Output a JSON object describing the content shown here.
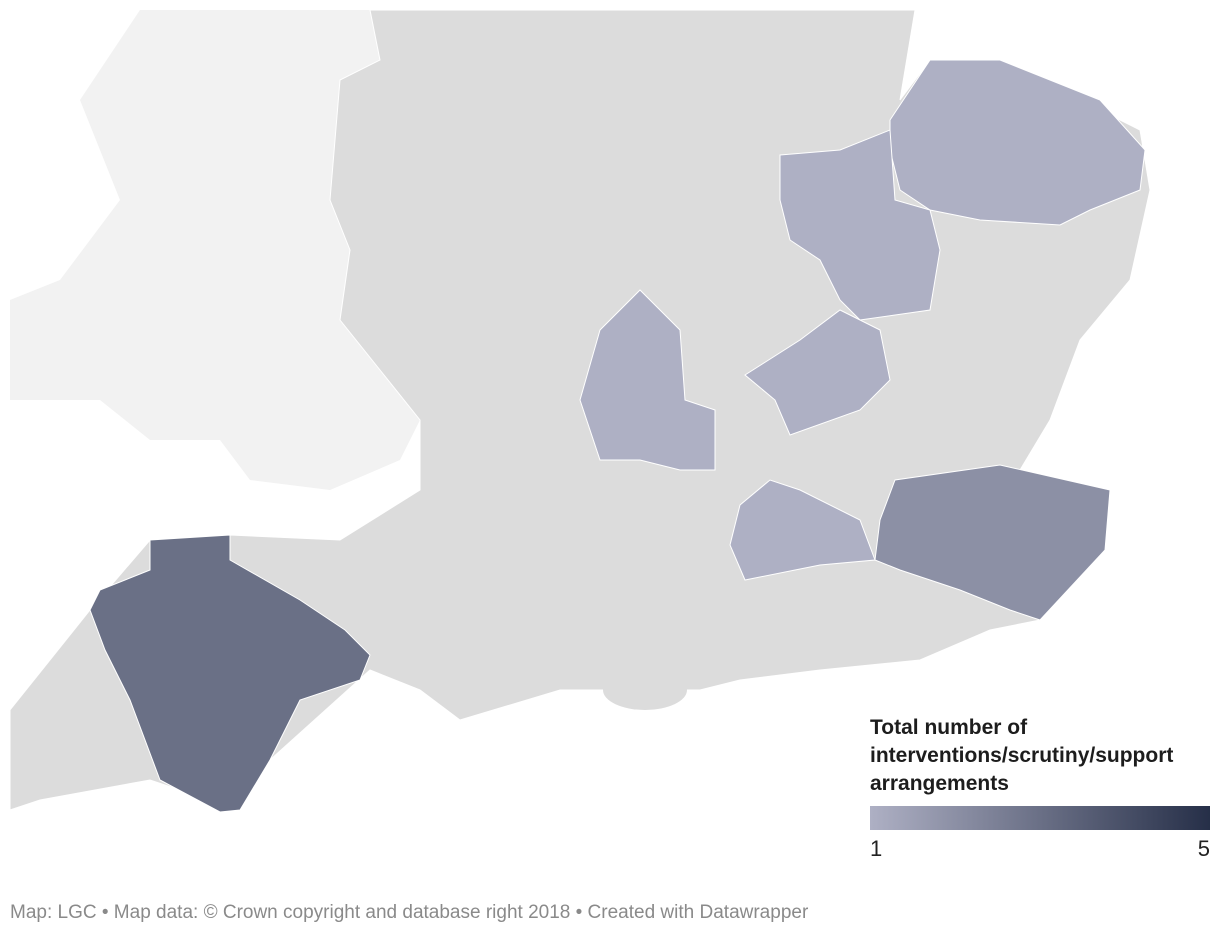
{
  "map": {
    "legend": {
      "title": "Total number of interventions/scrutiny/support arrangements",
      "min": 1,
      "max": 5,
      "colors": [
        "#aeb0c4",
        "#262f48"
      ]
    },
    "regions": {
      "values": [
        1,
        1,
        1,
        1,
        1,
        2,
        3
      ]
    }
  },
  "footer": "Map: LGC • Map data: © Crown copyright and database right 2018  • Created with Datawrapper"
}
